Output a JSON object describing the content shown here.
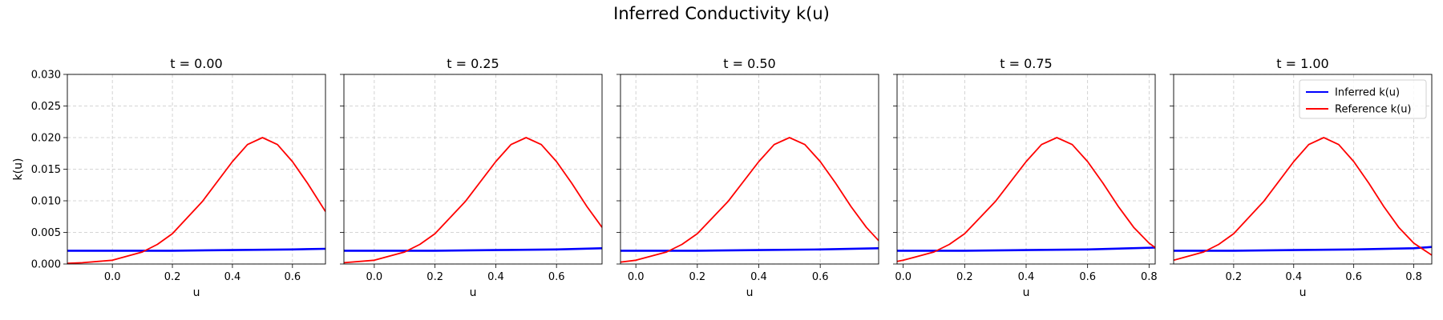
{
  "title": "Inferred Conductivity k(u)",
  "chart_data": [
    {
      "type": "line",
      "title": "t = 0.00",
      "xlabel": "u",
      "ylabel": "k(u)",
      "xlim": [
        -0.15,
        0.71
      ],
      "ylim": [
        0,
        0.03
      ],
      "xticks": [
        "0.0",
        "0.2",
        "0.4",
        "0.6"
      ],
      "yticks": [
        "0.000",
        "0.005",
        "0.010",
        "0.015",
        "0.020",
        "0.025",
        "0.030"
      ],
      "grid": true,
      "series": [
        {
          "name": "Inferred k(u)",
          "color": "#0000ff",
          "x": [
            -0.15,
            0.0,
            0.2,
            0.4,
            0.6,
            0.71
          ],
          "y": [
            0.0021,
            0.0021,
            0.0021,
            0.0022,
            0.0023,
            0.0024
          ]
        },
        {
          "name": "Reference k(u)",
          "color": "#ff0000",
          "x": [
            -0.15,
            -0.1,
            0.0,
            0.1,
            0.15,
            0.2,
            0.3,
            0.4,
            0.45,
            0.5,
            0.55,
            0.6,
            0.65,
            0.71
          ],
          "y": [
            0.0001,
            0.0002,
            0.0006,
            0.0019,
            0.0031,
            0.0048,
            0.0099,
            0.0162,
            0.0189,
            0.02,
            0.0189,
            0.0162,
            0.0128,
            0.0083
          ]
        }
      ]
    },
    {
      "type": "line",
      "title": "t = 0.25",
      "xlabel": "u",
      "xlim": [
        -0.1,
        0.75
      ],
      "ylim": [
        0,
        0.03
      ],
      "xticks": [
        "0.0",
        "0.2",
        "0.4",
        "0.6"
      ],
      "grid": true,
      "series": [
        {
          "name": "Inferred k(u)",
          "color": "#0000ff",
          "x": [
            -0.1,
            0.0,
            0.2,
            0.4,
            0.6,
            0.75
          ],
          "y": [
            0.0021,
            0.0021,
            0.0021,
            0.0022,
            0.0023,
            0.0025
          ]
        },
        {
          "name": "Reference k(u)",
          "color": "#ff0000",
          "x": [
            -0.1,
            0.0,
            0.1,
            0.15,
            0.2,
            0.3,
            0.4,
            0.45,
            0.5,
            0.55,
            0.6,
            0.65,
            0.7,
            0.75
          ],
          "y": [
            0.0002,
            0.0006,
            0.0019,
            0.0031,
            0.0048,
            0.0099,
            0.0162,
            0.0189,
            0.02,
            0.0189,
            0.0162,
            0.0128,
            0.0091,
            0.0058
          ]
        }
      ]
    },
    {
      "type": "line",
      "title": "t = 0.50",
      "xlabel": "u",
      "xlim": [
        -0.05,
        0.79
      ],
      "ylim": [
        0,
        0.03
      ],
      "xticks": [
        "0.0",
        "0.2",
        "0.4",
        "0.6"
      ],
      "grid": true,
      "series": [
        {
          "name": "Inferred k(u)",
          "color": "#0000ff",
          "x": [
            -0.05,
            0.0,
            0.2,
            0.4,
            0.6,
            0.79
          ],
          "y": [
            0.0021,
            0.0021,
            0.0021,
            0.0022,
            0.0023,
            0.0025
          ]
        },
        {
          "name": "Reference k(u)",
          "color": "#ff0000",
          "x": [
            -0.05,
            0.0,
            0.1,
            0.15,
            0.2,
            0.3,
            0.4,
            0.45,
            0.5,
            0.55,
            0.6,
            0.65,
            0.7,
            0.75,
            0.79
          ],
          "y": [
            0.0003,
            0.0006,
            0.0019,
            0.0031,
            0.0048,
            0.0099,
            0.0162,
            0.0189,
            0.02,
            0.0189,
            0.0162,
            0.0128,
            0.0091,
            0.0058,
            0.0037
          ]
        }
      ]
    },
    {
      "type": "line",
      "title": "t = 0.75",
      "xlabel": "u",
      "xlim": [
        -0.02,
        0.82
      ],
      "ylim": [
        0,
        0.03
      ],
      "xticks": [
        "0.0",
        "0.2",
        "0.4",
        "0.6",
        "0.8"
      ],
      "grid": true,
      "series": [
        {
          "name": "Inferred k(u)",
          "color": "#0000ff",
          "x": [
            -0.02,
            0.0,
            0.2,
            0.4,
            0.6,
            0.82
          ],
          "y": [
            0.0021,
            0.0021,
            0.0021,
            0.0022,
            0.0023,
            0.0026
          ]
        },
        {
          "name": "Reference k(u)",
          "color": "#ff0000",
          "x": [
            -0.02,
            0.0,
            0.1,
            0.15,
            0.2,
            0.3,
            0.4,
            0.45,
            0.5,
            0.55,
            0.6,
            0.65,
            0.7,
            0.75,
            0.8,
            0.82
          ],
          "y": [
            0.0004,
            0.0006,
            0.0019,
            0.0031,
            0.0048,
            0.0099,
            0.0162,
            0.0189,
            0.02,
            0.0189,
            0.0162,
            0.0128,
            0.0091,
            0.0058,
            0.0033,
            0.0026
          ]
        }
      ]
    },
    {
      "type": "line",
      "title": "t = 1.00",
      "xlabel": "u",
      "xlim": [
        0.0,
        0.86
      ],
      "ylim": [
        0,
        0.03
      ],
      "xticks": [
        "0.2",
        "0.4",
        "0.6",
        "0.8"
      ],
      "grid": true,
      "legend": "top-right",
      "series": [
        {
          "name": "Inferred k(u)",
          "color": "#0000ff",
          "x": [
            0.0,
            0.2,
            0.4,
            0.6,
            0.8,
            0.86
          ],
          "y": [
            0.0021,
            0.0021,
            0.0022,
            0.0023,
            0.0025,
            0.0027
          ]
        },
        {
          "name": "Reference k(u)",
          "color": "#ff0000",
          "x": [
            0.0,
            0.1,
            0.15,
            0.2,
            0.3,
            0.4,
            0.45,
            0.5,
            0.55,
            0.6,
            0.65,
            0.7,
            0.75,
            0.8,
            0.86
          ],
          "y": [
            0.0006,
            0.0019,
            0.0031,
            0.0048,
            0.0099,
            0.0162,
            0.0189,
            0.02,
            0.0189,
            0.0162,
            0.0128,
            0.0091,
            0.0058,
            0.0033,
            0.0014
          ]
        }
      ]
    }
  ]
}
